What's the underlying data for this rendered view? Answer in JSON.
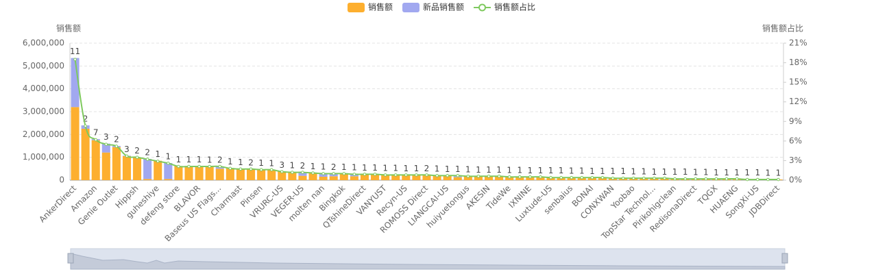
{
  "chart_data": {
    "type": "bar",
    "legend": "top",
    "grid": true,
    "categories": [
      "AnkerDirect",
      null,
      "Amazon",
      null,
      "Genie Outlet",
      null,
      "Hippsh",
      null,
      "guheshiye",
      null,
      "defeng store",
      null,
      "BLAVOR",
      null,
      "Baseus US Flags...",
      null,
      "Charmast",
      null,
      "Pinsen",
      null,
      "VRURC-US",
      null,
      "VEGER-US",
      null,
      "molten nan",
      null,
      "Bingkok",
      null,
      "QTshineDirect",
      null,
      "VANYUST",
      null,
      "Recyn-US",
      null,
      "ROMOSS Direct",
      null,
      "LIANGCAI-US",
      null,
      "huiyuetongus",
      null,
      "AKESIN",
      null,
      "TideWe",
      null,
      "IXNINE",
      null,
      "Luxtude-US",
      null,
      "senbaius",
      null,
      "BONAI",
      null,
      "CONXWAN",
      null,
      "Yoobao",
      null,
      "TopStar Technol...",
      null,
      "Pirikohigclean",
      null,
      "RedisonaDirect",
      null,
      "TQGX",
      null,
      "HUAENG",
      null,
      "SongXi-US",
      null,
      "JDBDirect"
    ],
    "ylabel": "销售额",
    "y2label": "销售额占比",
    "ylim": [
      0,
      6000000
    ],
    "yticks": [
      0,
      {
        "value": 1000000,
        "label": "1,000,000"
      },
      {
        "value": 2000000,
        "label": "2,000,000"
      },
      {
        "value": 3000000,
        "label": "3,000,000"
      },
      {
        "value": 4000000,
        "label": "4,000,000"
      },
      {
        "value": 5000000,
        "label": "5,000,000"
      },
      {
        "value": 6000000,
        "label": "6,000,000"
      }
    ],
    "y2lim": [
      0,
      21
    ],
    "y2ticks": [
      {
        "value": 0,
        "label": "0%"
      },
      {
        "value": 3,
        "label": "3%"
      },
      {
        "value": 6,
        "label": "6%"
      },
      {
        "value": 9,
        "label": "9%"
      },
      {
        "value": 12,
        "label": "12%"
      },
      {
        "value": 15,
        "label": "15%"
      },
      {
        "value": 18,
        "label": "18%"
      },
      {
        "value": 21,
        "label": "21%"
      }
    ],
    "series": [
      {
        "name": "销售额",
        "type": "bar",
        "color": "#fdaf2f",
        "values": [
          3200000,
          2250000,
          1750000,
          1210000,
          1450000,
          1050000,
          1000000,
          50000,
          850000,
          50000,
          620000,
          620000,
          610000,
          600000,
          500000,
          530000,
          500000,
          480000,
          470000,
          450000,
          380000,
          360000,
          190000,
          320000,
          150000,
          170000,
          280000,
          170000,
          260000,
          250000,
          240000,
          240000,
          230000,
          230000,
          220000,
          210000,
          200000,
          130000,
          180000,
          170000,
          170000,
          160000,
          150000,
          150000,
          140000,
          140000,
          130000,
          130000,
          120000,
          120000,
          110000,
          110000,
          100000,
          100000,
          90000,
          90000,
          80000,
          80000,
          70000,
          70000,
          60000,
          60000,
          50000,
          50000,
          50000,
          40000,
          40000,
          30000,
          30000
        ]
      },
      {
        "name": "新品销售额",
        "type": "bar",
        "color": "#a1a8f0",
        "values": [
          2150000,
          150000,
          50000,
          390000,
          50000,
          20000,
          0,
          880000,
          0,
          700000,
          0,
          0,
          0,
          0,
          100000,
          0,
          0,
          0,
          0,
          0,
          0,
          0,
          150000,
          0,
          150000,
          120000,
          0,
          100000,
          0,
          0,
          0,
          0,
          0,
          0,
          0,
          0,
          0,
          60000,
          0,
          0,
          0,
          0,
          0,
          0,
          0,
          0,
          0,
          0,
          0,
          0,
          0,
          0,
          0,
          0,
          0,
          0,
          0,
          0,
          0,
          0,
          0,
          0,
          0,
          0,
          0,
          0,
          0,
          0,
          0
        ]
      },
      {
        "name": "销售额占比",
        "type": "line",
        "axis": "y2",
        "color": "#7ec95e",
        "values": [
          18.5,
          8.3,
          6.2,
          5.5,
          5.2,
          3.7,
          3.5,
          3.2,
          2.9,
          2.6,
          2.1,
          2.1,
          2.1,
          2.1,
          2.1,
          1.8,
          1.7,
          1.7,
          1.6,
          1.6,
          1.3,
          1.2,
          1.2,
          1.1,
          1.0,
          1.0,
          1.0,
          0.9,
          0.9,
          0.9,
          0.8,
          0.8,
          0.8,
          0.8,
          0.8,
          0.7,
          0.7,
          0.7,
          0.6,
          0.6,
          0.6,
          0.6,
          0.5,
          0.5,
          0.5,
          0.5,
          0.4,
          0.4,
          0.4,
          0.4,
          0.4,
          0.4,
          0.3,
          0.3,
          0.3,
          0.3,
          0.3,
          0.3,
          0.2,
          0.2,
          0.2,
          0.2,
          0.2,
          0.2,
          0.2,
          0.1,
          0.1,
          0.1,
          0.1
        ]
      }
    ],
    "bar_labels": [
      11,
      2,
      7,
      3,
      2,
      3,
      2,
      2,
      1,
      1,
      1,
      1,
      1,
      1,
      2,
      1,
      1,
      2,
      1,
      1,
      3,
      1,
      2,
      1,
      1,
      2,
      1,
      1,
      1,
      1,
      1,
      1,
      1,
      1,
      2,
      1,
      1,
      1,
      1,
      1,
      1,
      1,
      1,
      1,
      1,
      1,
      1,
      1,
      1,
      1,
      1,
      1,
      1,
      1,
      1,
      1,
      1,
      1,
      1,
      1,
      1,
      1,
      1,
      1,
      1,
      1,
      1,
      1,
      1
    ]
  }
}
